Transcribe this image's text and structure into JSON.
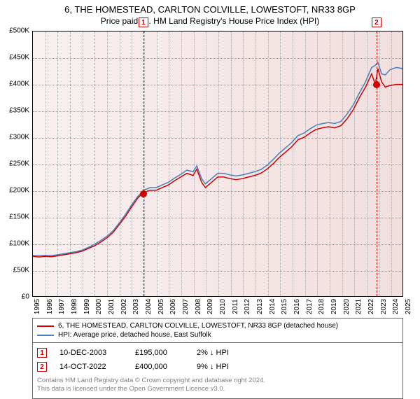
{
  "title": "6, THE HOMESTEAD, CARLTON COLVILLE, LOWESTOFT, NR33 8GP",
  "subtitle": "Price paid vs. HM Land Registry's House Price Index (HPI)",
  "chart": {
    "type": "line",
    "background_gradient": [
      "#f9f0f0",
      "#f2dede"
    ],
    "border_color": "#000000",
    "grid_color": "#999999",
    "y": {
      "min": 0,
      "max": 500000,
      "step": 50000,
      "labels": [
        "£0",
        "£50K",
        "£100K",
        "£150K",
        "£200K",
        "£250K",
        "£300K",
        "£350K",
        "£400K",
        "£450K",
        "£500K"
      ]
    },
    "x": {
      "min": 1995,
      "max": 2025,
      "step": 1,
      "labels": [
        "1995",
        "1996",
        "1997",
        "1998",
        "1999",
        "2000",
        "2001",
        "2002",
        "2003",
        "2004",
        "2005",
        "2006",
        "2007",
        "2008",
        "2009",
        "2010",
        "2011",
        "2012",
        "2013",
        "2014",
        "2015",
        "2016",
        "2017",
        "2018",
        "2019",
        "2020",
        "2021",
        "2022",
        "2023",
        "2024",
        "2025"
      ],
      "label_fontsize": 10
    },
    "series": [
      {
        "name": "property",
        "label": "6, THE HOMESTEAD, CARLTON COLVILLE, LOWESTOFT, NR33 8GP (detached house)",
        "color": "#cc0000",
        "line_width": 1.5,
        "points": [
          [
            1995,
            75000
          ],
          [
            1995.5,
            74000
          ],
          [
            1996,
            75000
          ],
          [
            1996.5,
            74500
          ],
          [
            1997,
            76000
          ],
          [
            1997.5,
            78000
          ],
          [
            1998,
            80000
          ],
          [
            1998.5,
            82000
          ],
          [
            1999,
            85000
          ],
          [
            1999.5,
            90000
          ],
          [
            2000,
            95000
          ],
          [
            2000.5,
            102000
          ],
          [
            2001,
            110000
          ],
          [
            2001.5,
            120000
          ],
          [
            2002,
            135000
          ],
          [
            2002.5,
            150000
          ],
          [
            2003,
            168000
          ],
          [
            2003.5,
            185000
          ],
          [
            2003.94,
            195000
          ],
          [
            2004.5,
            200000
          ],
          [
            2005,
            200000
          ],
          [
            2005.5,
            205000
          ],
          [
            2006,
            210000
          ],
          [
            2006.5,
            218000
          ],
          [
            2007,
            225000
          ],
          [
            2007.5,
            232000
          ],
          [
            2008,
            228000
          ],
          [
            2008.3,
            240000
          ],
          [
            2008.7,
            215000
          ],
          [
            2009,
            205000
          ],
          [
            2009.5,
            215000
          ],
          [
            2010,
            225000
          ],
          [
            2010.5,
            225000
          ],
          [
            2011,
            222000
          ],
          [
            2011.5,
            220000
          ],
          [
            2012,
            222000
          ],
          [
            2012.5,
            225000
          ],
          [
            2013,
            228000
          ],
          [
            2013.5,
            232000
          ],
          [
            2014,
            240000
          ],
          [
            2014.5,
            250000
          ],
          [
            2015,
            262000
          ],
          [
            2015.5,
            272000
          ],
          [
            2016,
            282000
          ],
          [
            2016.5,
            295000
          ],
          [
            2017,
            300000
          ],
          [
            2017.5,
            308000
          ],
          [
            2018,
            315000
          ],
          [
            2018.5,
            318000
          ],
          [
            2019,
            320000
          ],
          [
            2019.5,
            318000
          ],
          [
            2020,
            322000
          ],
          [
            2020.5,
            335000
          ],
          [
            2021,
            352000
          ],
          [
            2021.5,
            375000
          ],
          [
            2022,
            395000
          ],
          [
            2022.5,
            420000
          ],
          [
            2022.79,
            400000
          ],
          [
            2023,
            430000
          ],
          [
            2023.3,
            405000
          ],
          [
            2023.6,
            395000
          ],
          [
            2024,
            398000
          ],
          [
            2024.5,
            400000
          ],
          [
            2025,
            400000
          ]
        ]
      },
      {
        "name": "hpi",
        "label": "HPI: Average price, detached house, East Suffolk",
        "color": "#4a7ebb",
        "line_width": 1.5,
        "points": [
          [
            1995,
            77000
          ],
          [
            1995.5,
            76000
          ],
          [
            1996,
            77000
          ],
          [
            1996.5,
            76500
          ],
          [
            1997,
            78000
          ],
          [
            1997.5,
            80000
          ],
          [
            1998,
            82000
          ],
          [
            1998.5,
            84000
          ],
          [
            1999,
            87000
          ],
          [
            1999.5,
            92000
          ],
          [
            2000,
            98000
          ],
          [
            2000.5,
            105000
          ],
          [
            2001,
            113000
          ],
          [
            2001.5,
            123000
          ],
          [
            2002,
            138000
          ],
          [
            2002.5,
            154000
          ],
          [
            2003,
            172000
          ],
          [
            2003.5,
            188000
          ],
          [
            2004,
            200000
          ],
          [
            2004.5,
            205000
          ],
          [
            2005,
            205000
          ],
          [
            2005.5,
            210000
          ],
          [
            2006,
            215000
          ],
          [
            2006.5,
            223000
          ],
          [
            2007,
            230000
          ],
          [
            2007.5,
            238000
          ],
          [
            2008,
            235000
          ],
          [
            2008.3,
            246000
          ],
          [
            2008.7,
            222000
          ],
          [
            2009,
            212000
          ],
          [
            2009.5,
            222000
          ],
          [
            2010,
            232000
          ],
          [
            2010.5,
            232000
          ],
          [
            2011,
            229000
          ],
          [
            2011.5,
            227000
          ],
          [
            2012,
            229000
          ],
          [
            2012.5,
            232000
          ],
          [
            2013,
            235000
          ],
          [
            2013.5,
            239000
          ],
          [
            2014,
            247000
          ],
          [
            2014.5,
            258000
          ],
          [
            2015,
            270000
          ],
          [
            2015.5,
            280000
          ],
          [
            2016,
            290000
          ],
          [
            2016.5,
            303000
          ],
          [
            2017,
            308000
          ],
          [
            2017.5,
            316000
          ],
          [
            2018,
            323000
          ],
          [
            2018.5,
            326000
          ],
          [
            2019,
            328000
          ],
          [
            2019.5,
            326000
          ],
          [
            2020,
            330000
          ],
          [
            2020.5,
            344000
          ],
          [
            2021,
            361000
          ],
          [
            2021.5,
            384000
          ],
          [
            2022,
            405000
          ],
          [
            2022.5,
            432000
          ],
          [
            2022.79,
            436000
          ],
          [
            2023,
            442000
          ],
          [
            2023.3,
            420000
          ],
          [
            2023.6,
            418000
          ],
          [
            2024,
            428000
          ],
          [
            2024.5,
            432000
          ],
          [
            2025,
            430000
          ]
        ]
      }
    ],
    "markers": [
      {
        "id": "1",
        "year": 2003.94,
        "price": 195000
      },
      {
        "id": "2",
        "year": 2022.79,
        "price": 400000
      }
    ]
  },
  "transactions": [
    {
      "id": "1",
      "date": "10-DEC-2003",
      "price": "£195,000",
      "pct": "2% ↓ HPI"
    },
    {
      "id": "2",
      "date": "14-OCT-2022",
      "price": "£400,000",
      "pct": "9% ↓ HPI"
    }
  ],
  "footer": {
    "line1": "Contains HM Land Registry data © Crown copyright and database right 2024.",
    "line2": "This data is licensed under the Open Government Licence v3.0."
  }
}
